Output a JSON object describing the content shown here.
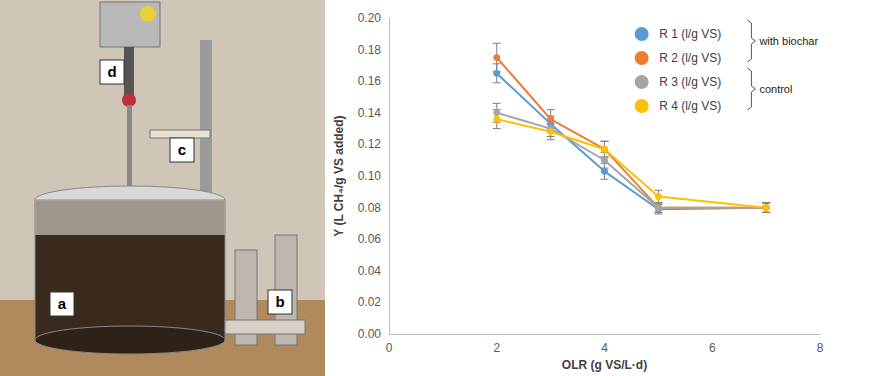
{
  "photo_labels": [
    "a",
    "b",
    "c",
    "d"
  ],
  "chart_data": {
    "type": "line",
    "x_label": "OLR (g VS/L·d)",
    "y_label": "Y (L CH₄/g VS added)",
    "x": [
      2,
      3,
      4,
      5,
      7
    ],
    "series": [
      {
        "name": "R 1 (l/g VS)",
        "color": "#5b9bd5",
        "values": [
          0.165,
          0.133,
          0.103,
          0.079,
          0.08
        ],
        "errors": [
          0.006,
          0.005,
          0.005,
          0.003,
          0.003
        ]
      },
      {
        "name": "R 2 (l/g VS)",
        "color": "#ed7d31",
        "values": [
          0.175,
          0.136,
          0.117,
          0.08,
          0.08
        ],
        "errors": [
          0.009,
          0.006,
          0.005,
          0.003,
          0.003
        ]
      },
      {
        "name": "R 3 (l/g VS)",
        "color": "#a5a5a5",
        "values": [
          0.14,
          0.13,
          0.11,
          0.08,
          0.08
        ],
        "errors": [
          0.006,
          0.005,
          0.005,
          0.003,
          0.003
        ]
      },
      {
        "name": "R 4 (l/g VS)",
        "color": "#ffc000",
        "values": [
          0.136,
          0.128,
          0.117,
          0.087,
          0.08
        ],
        "errors": [
          0.006,
          0.005,
          0.005,
          0.004,
          0.003
        ]
      }
    ],
    "annotations": [
      {
        "text": "with biochar",
        "series": [
          "R 1 (l/g VS)",
          "R 2 (l/g VS)"
        ]
      },
      {
        "text": "control",
        "series": [
          "R 3 (l/g VS)",
          "R 4 (l/g VS)"
        ]
      }
    ],
    "xlim": [
      0,
      8
    ],
    "xticks": [
      0,
      2,
      4,
      6,
      8
    ],
    "ylim": [
      0,
      0.2
    ],
    "yticks": [
      {
        "value": 0,
        "label": "0.00"
      },
      {
        "value": 0.02,
        "label": "0.02"
      },
      {
        "value": 0.04,
        "label": "0.04"
      },
      {
        "value": 0.06,
        "label": "0.06"
      },
      {
        "value": 0.08,
        "label": "0.08"
      },
      {
        "value": 0.1,
        "label": "0.10"
      },
      {
        "value": 0.12,
        "label": "0.12"
      },
      {
        "value": 0.14,
        "label": "0.14"
      },
      {
        "value": 0.16,
        "label": "0.16"
      },
      {
        "value": 0.18,
        "label": "0.18"
      },
      {
        "value": 0.2,
        "label": "0.20"
      }
    ],
    "grid": false,
    "legend": "top-right",
    "marker": "circle",
    "line_style": "solid"
  }
}
